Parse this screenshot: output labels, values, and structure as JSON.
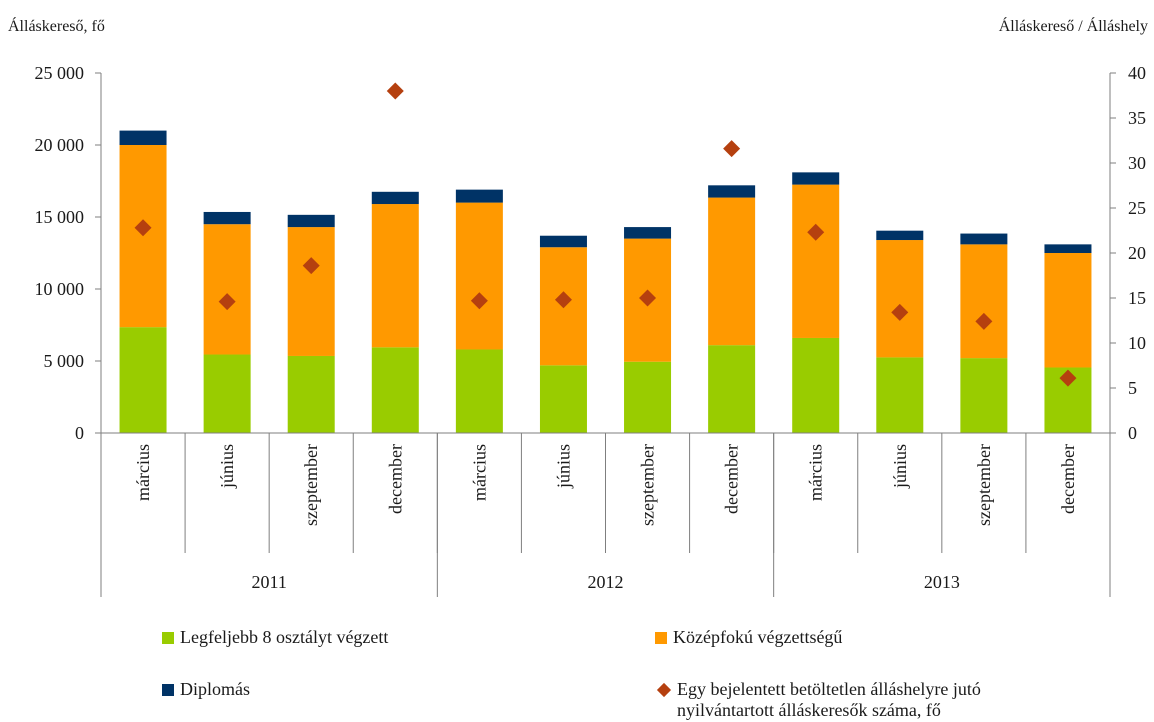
{
  "chart_data": {
    "type": "bar",
    "stacked": true,
    "left_axis_label": "Álláskereső, fő",
    "right_axis_label": "Álláskereső / Álláshely",
    "left_ylim": [
      0,
      25000
    ],
    "left_ticks": [
      "0",
      "5 000",
      "10 000",
      "15 000",
      "20 000",
      "25 000"
    ],
    "right_ylim": [
      0,
      40
    ],
    "right_ticks": [
      "0",
      "5",
      "10",
      "15",
      "20",
      "25",
      "30",
      "35",
      "40"
    ],
    "categories": [
      "március",
      "június",
      "szeptember",
      "december",
      "március",
      "június",
      "szeptember",
      "december",
      "március",
      "június",
      "szeptember",
      "december"
    ],
    "groups": [
      {
        "label": "2011",
        "count": 4
      },
      {
        "label": "2012",
        "count": 4
      },
      {
        "label": "2013",
        "count": 4
      }
    ],
    "series": [
      {
        "name": "Legfeljebb 8 osztályt végzett",
        "color": "#99cc00",
        "values": [
          7350,
          5450,
          5350,
          5950,
          5800,
          4700,
          4950,
          6100,
          6600,
          5250,
          5200,
          4550
        ]
      },
      {
        "name": "Középfokú végzettségű",
        "color": "#ff9900",
        "values": [
          12650,
          9050,
          8950,
          9950,
          10200,
          8200,
          8550,
          10250,
          10650,
          8150,
          7900,
          7950
        ]
      },
      {
        "name": "Diplomás",
        "color": "#003366",
        "values": [
          1000,
          850,
          850,
          850,
          900,
          800,
          800,
          850,
          850,
          650,
          750,
          600
        ]
      },
      {
        "name": "Egy bejelentett betöltetlen álláshelyre jutó nyilvántartott álláskeresők száma, fő",
        "color": "#b5400f",
        "axis": "right",
        "type": "scatter",
        "marker": "diamond",
        "values": [
          22.8,
          14.6,
          18.6,
          38.0,
          14.7,
          14.8,
          15.0,
          31.6,
          22.3,
          13.4,
          12.4,
          6.1
        ]
      }
    ]
  }
}
